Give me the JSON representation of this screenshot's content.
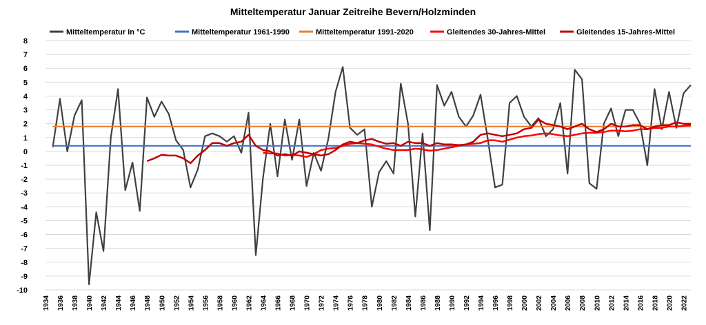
{
  "chart_data": {
    "type": "line",
    "title": "Mitteltemperatur Januar Zeitreihe Bevern/Holzminden",
    "xlabel": "",
    "ylabel": "",
    "ylim": [
      -10,
      8
    ],
    "xlim": [
      1934,
      2023
    ],
    "grid": "horizontal",
    "legend_position": "top",
    "y_ticks": [
      8,
      7,
      6,
      5,
      4,
      3,
      2,
      1,
      0,
      -1,
      -2,
      -3,
      -4,
      -5,
      -6,
      -7,
      -8,
      -9,
      -10
    ],
    "x_ticks": [
      1934,
      1936,
      1938,
      1940,
      1942,
      1944,
      1946,
      1948,
      1950,
      1952,
      1954,
      1956,
      1958,
      1960,
      1962,
      1964,
      1966,
      1968,
      1970,
      1972,
      1974,
      1976,
      1978,
      1980,
      1982,
      1984,
      1986,
      1988,
      1990,
      1992,
      1994,
      1996,
      1998,
      2000,
      2002,
      2004,
      2006,
      2008,
      2010,
      2012,
      2014,
      2016,
      2018,
      2020,
      2022
    ],
    "series": [
      {
        "name": "Mitteltemperatur in °C",
        "color": "#404040",
        "x": [
          1935,
          1936,
          1937,
          1938,
          1939,
          1940,
          1941,
          1942,
          1943,
          1944,
          1945,
          1946,
          1947,
          1948,
          1949,
          1950,
          1951,
          1952,
          1953,
          1954,
          1955,
          1956,
          1957,
          1958,
          1959,
          1960,
          1961,
          1962,
          1963,
          1964,
          1965,
          1966,
          1967,
          1968,
          1969,
          1970,
          1971,
          1972,
          1973,
          1974,
          1975,
          1976,
          1977,
          1978,
          1979,
          1980,
          1981,
          1982,
          1983,
          1984,
          1985,
          1986,
          1987,
          1988,
          1989,
          1990,
          1991,
          1992,
          1993,
          1994,
          1995,
          1996,
          1997,
          1998,
          1999,
          2000,
          2001,
          2002,
          2003,
          2004,
          2005,
          2006,
          2007,
          2008,
          2009,
          2010,
          2011,
          2012,
          2013,
          2014,
          2015,
          2016,
          2017,
          2018,
          2019,
          2020,
          2021,
          2022,
          2023
        ],
        "values": [
          0.3,
          3.8,
          0.0,
          2.6,
          3.7,
          -9.6,
          -4.4,
          -7.2,
          1.0,
          4.5,
          -2.8,
          -0.8,
          -4.3,
          3.9,
          2.5,
          3.6,
          2.7,
          0.8,
          0.1,
          -2.6,
          -1.3,
          1.1,
          1.3,
          1.1,
          0.7,
          1.1,
          -0.1,
          2.8,
          -7.5,
          -1.9,
          2.0,
          -1.8,
          2.3,
          -0.6,
          2.3,
          -2.5,
          -0.1,
          -1.4,
          0.9,
          4.3,
          6.1,
          1.7,
          1.2,
          1.6,
          -4.0,
          -1.5,
          -0.7,
          -1.6,
          4.9,
          2.0,
          -4.7,
          1.3,
          -5.7,
          4.8,
          3.3,
          4.3,
          2.5,
          1.8,
          2.6,
          4.1,
          0.9,
          -2.6,
          -2.4,
          3.5,
          4.0,
          2.5,
          1.8,
          2.4,
          1.1,
          1.6,
          3.5,
          -1.6,
          5.9,
          5.2,
          -2.3,
          -2.7,
          2.0,
          3.1,
          1.1,
          3.0,
          3.0,
          2.0,
          -1.0,
          4.5,
          1.6,
          4.3,
          1.7,
          4.2,
          4.8
        ]
      },
      {
        "name": "Mitteltemperatur 1961-1990",
        "color": "#4472C4",
        "x": [
          1935,
          2023
        ],
        "values": [
          0.4,
          0.4
        ]
      },
      {
        "name": "Mitteltemperatur 1991-2020",
        "color": "#ED7D31",
        "x": [
          1935,
          2023
        ],
        "values": [
          1.8,
          1.8
        ]
      },
      {
        "name": "Gleitendes 30-Jahres-Mittel",
        "color": "#FF0000",
        "x": [
          1964,
          1965,
          1966,
          1967,
          1968,
          1969,
          1970,
          1971,
          1972,
          1973,
          1974,
          1975,
          1976,
          1977,
          1978,
          1979,
          1980,
          1981,
          1982,
          1983,
          1984,
          1985,
          1986,
          1987,
          1988,
          1989,
          1990,
          1991,
          1992,
          1993,
          1994,
          1995,
          1996,
          1997,
          1998,
          1999,
          2000,
          2001,
          2002,
          2003,
          2004,
          2005,
          2006,
          2007,
          2008,
          2009,
          2010,
          2011,
          2012,
          2013,
          2014,
          2015,
          2016,
          2017,
          2018,
          2019,
          2020,
          2021,
          2022,
          2023
        ],
        "values": [
          -0.1,
          -0.15,
          -0.15,
          -0.3,
          -0.25,
          -0.3,
          -0.4,
          -0.2,
          0.1,
          0.2,
          0.25,
          0.4,
          0.55,
          0.6,
          0.55,
          0.5,
          0.35,
          0.2,
          0.1,
          0.1,
          0.1,
          0.2,
          0.15,
          0.05,
          0.1,
          0.2,
          0.3,
          0.4,
          0.5,
          0.55,
          0.6,
          0.8,
          0.8,
          0.7,
          0.85,
          1.0,
          1.1,
          1.15,
          1.25,
          1.3,
          1.25,
          1.15,
          1.1,
          1.2,
          1.3,
          1.35,
          1.35,
          1.4,
          1.5,
          1.5,
          1.45,
          1.5,
          1.6,
          1.6,
          1.7,
          1.7,
          1.8,
          1.8,
          1.85,
          1.9
        ]
      },
      {
        "name": "Gleitendes 15-Jahres-Mittel",
        "color": "#C00000",
        "x": [
          1948,
          1949,
          1950,
          1951,
          1952,
          1953,
          1954,
          1955,
          1956,
          1957,
          1958,
          1959,
          1960,
          1961,
          1962,
          1963,
          1964,
          1965,
          1966,
          1967,
          1968,
          1969,
          1970,
          1971,
          1972,
          1973,
          1974,
          1975,
          1976,
          1977,
          1978,
          1979,
          1980,
          1981,
          1982,
          1983,
          1984,
          1985,
          1986,
          1987,
          1988,
          1989,
          1990,
          1991,
          1992,
          1993,
          1994,
          1995,
          1996,
          1997,
          1998,
          1999,
          2000,
          2001,
          2002,
          2003,
          2004,
          2005,
          2006,
          2007,
          2008,
          2009,
          2010,
          2011,
          2012,
          2013,
          2014,
          2015,
          2016,
          2017,
          2018,
          2019,
          2020,
          2021,
          2022,
          2023
        ],
        "values": [
          -0.7,
          -0.5,
          -0.25,
          -0.3,
          -0.3,
          -0.5,
          -0.85,
          -0.3,
          0.1,
          0.6,
          0.6,
          0.4,
          0.6,
          0.7,
          1.2,
          0.4,
          0.1,
          0.0,
          -0.3,
          -0.2,
          -0.3,
          0.0,
          -0.1,
          -0.2,
          -0.3,
          -0.2,
          0.1,
          0.5,
          0.7,
          0.6,
          0.8,
          0.9,
          0.7,
          0.55,
          0.6,
          0.4,
          0.7,
          0.6,
          0.6,
          0.4,
          0.6,
          0.5,
          0.5,
          0.45,
          0.5,
          0.7,
          1.2,
          1.3,
          1.2,
          1.1,
          1.2,
          1.3,
          1.6,
          1.7,
          2.3,
          2.0,
          1.9,
          1.8,
          1.6,
          1.8,
          2.0,
          1.6,
          1.4,
          1.6,
          2.0,
          1.8,
          1.8,
          1.9,
          1.9,
          1.6,
          1.8,
          1.9,
          1.9,
          2.1,
          2.0,
          2.0
        ]
      }
    ]
  }
}
